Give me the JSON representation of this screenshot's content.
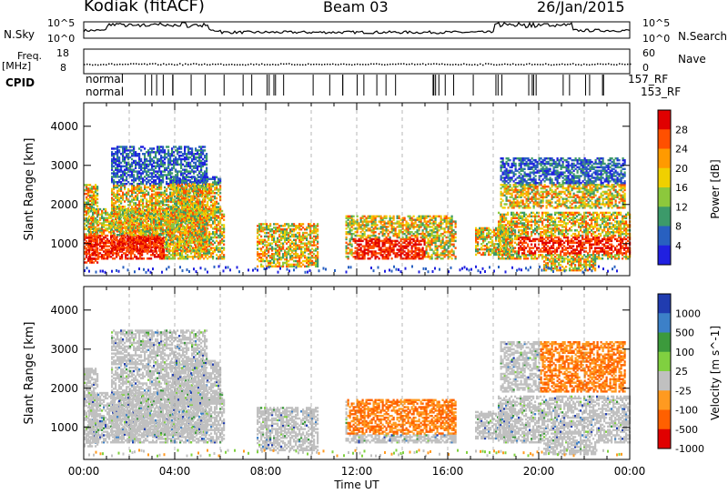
{
  "header": {
    "site": "Kodiak (fitACF)",
    "beam": "Beam 03",
    "date": "26/Jan/2015"
  },
  "panels": {
    "nsky": {
      "label": "N.Sky",
      "ticks": [
        "10^5",
        "10^0"
      ]
    },
    "nsearch": {
      "label": "N.Search",
      "ticks": [
        "10^5",
        "10^0"
      ]
    },
    "freq": {
      "label_line1": "Freq.",
      "label_line2": "[MHz]",
      "ticks": [
        "18",
        "8"
      ]
    },
    "nave": {
      "label": "Nave",
      "ticks": [
        "60",
        "0"
      ]
    },
    "cpid": {
      "label": "CPID",
      "row1": [
        "normal",
        "normal"
      ],
      "end_label": "157_RF",
      "end_label2": "153_RF"
    }
  },
  "chart_data": [
    {
      "type": "heatmap",
      "ylabel": "Slant Range [km]",
      "y_ticks": [
        1000,
        2000,
        3000,
        4000
      ],
      "ylim": [
        180,
        4600
      ],
      "xlim": [
        0,
        24
      ],
      "colorbar": {
        "label": "Power [dB]",
        "ticks": [
          "28",
          "24",
          "20",
          "16",
          "12",
          "8",
          "4"
        ],
        "colors": [
          "#e00000",
          "#ff5000",
          "#ff9a00",
          "#f0d000",
          "#8cc83c",
          "#3c9a6a",
          "#2860c0",
          "#2020e0"
        ]
      }
    },
    {
      "type": "heatmap",
      "ylabel": "Slant Range [km]",
      "xlabel": "Time UT",
      "y_ticks": [
        1000,
        2000,
        3000,
        4000
      ],
      "ylim": [
        180,
        4600
      ],
      "xlim": [
        0,
        24
      ],
      "x_ticks": [
        "00:00",
        "04:00",
        "08:00",
        "12:00",
        "16:00",
        "20:00",
        "00:00"
      ],
      "colorbar": {
        "label": "Velocity [m s^-1]",
        "ticks": [
          "1000",
          "500",
          "100",
          "25",
          "-25",
          "-100",
          "-500",
          "-1000"
        ],
        "colors": [
          "#203cb0",
          "#3c80c8",
          "#3c9a3c",
          "#80d040",
          "#c0c0c0",
          "#ff9a20",
          "#ff6000",
          "#e00000"
        ]
      }
    }
  ]
}
